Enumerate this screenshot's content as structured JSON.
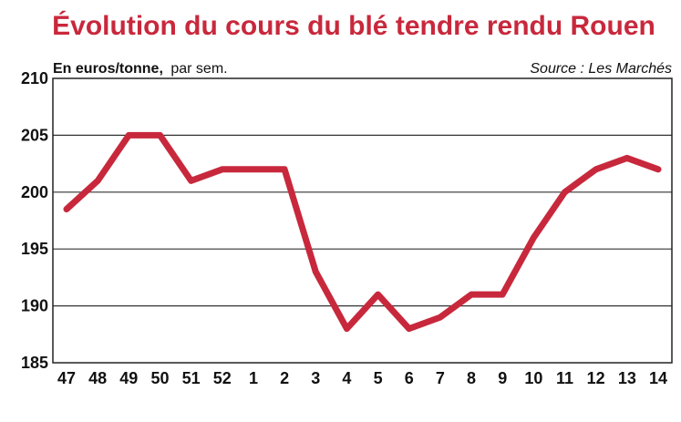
{
  "chart_data": {
    "type": "line",
    "title": "Évolution du cours du blé tendre rendu Rouen",
    "unit_label": "En euros/tonne,",
    "unit_suffix": "par sem.",
    "source": "Source : Les Marchés",
    "x": [
      "47",
      "48",
      "49",
      "50",
      "51",
      "52",
      "1",
      "2",
      "3",
      "4",
      "5",
      "6",
      "7",
      "8",
      "9",
      "10",
      "11",
      "12",
      "13",
      "14"
    ],
    "series": [
      {
        "values": [
          198.5,
          201,
          205,
          205,
          201,
          202,
          202,
          202,
          193,
          188,
          191,
          188,
          189,
          191,
          191,
          196,
          200,
          202,
          203,
          202
        ]
      }
    ],
    "y_ticks": [
      "210",
      "205",
      "200",
      "195",
      "190",
      "185"
    ],
    "ylim": [
      185,
      210
    ],
    "grid": true,
    "colors": {
      "line": "#c8283c",
      "title": "#c8283c"
    }
  }
}
